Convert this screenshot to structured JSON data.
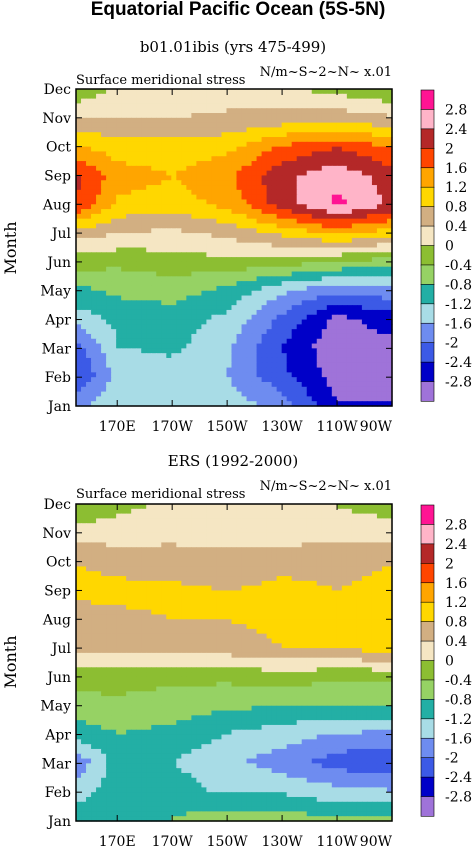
{
  "title": "Equatorial Pacific Ocean (5S-5N)",
  "chart_data": [
    {
      "type": "heatmap",
      "title": "b01.01ibis (yrs 475-499)",
      "subtitle_left": "Surface meridional stress",
      "subtitle_right": "N/m~S~2~N~ x.01",
      "xlabel": "",
      "ylabel": "Month",
      "x_ticks": [
        "170E",
        "170W",
        "150W",
        "130W",
        "110W",
        "90W"
      ],
      "x_tick_values": [
        170,
        190,
        210,
        230,
        250,
        270
      ],
      "xlim": [
        155,
        270
      ],
      "y_ticks": [
        "Jan",
        "Feb",
        "Mar",
        "Apr",
        "May",
        "Jun",
        "Jul",
        "Aug",
        "Sep",
        "Oct",
        "Nov",
        "Dec"
      ],
      "x": [
        155,
        170,
        190,
        210,
        230,
        250,
        270
      ],
      "values": [
        [
          -1.8,
          -1.3,
          -1.3,
          -1.4,
          -1.8,
          -2.8,
          -2.8
        ],
        [
          -2.4,
          -1.5,
          -1.4,
          -1.6,
          -2.3,
          -3.0,
          -3.0
        ],
        [
          -2.2,
          -1.2,
          -1.1,
          -1.5,
          -2.4,
          -3.1,
          -2.9
        ],
        [
          -1.4,
          -1.1,
          -1.0,
          -1.3,
          -2.1,
          -2.9,
          -2.6
        ],
        [
          -0.9,
          -0.7,
          -0.6,
          -0.9,
          -1.5,
          -1.9,
          -1.7
        ],
        [
          -0.2,
          -0.3,
          -0.2,
          -0.1,
          -0.2,
          -0.4,
          -0.6
        ],
        [
          0.6,
          0.4,
          0.3,
          0.5,
          0.9,
          1.3,
          1.0
        ],
        [
          2.0,
          1.1,
          1.0,
          1.3,
          2.2,
          2.9,
          2.3
        ],
        [
          2.1,
          1.4,
          1.2,
          1.5,
          2.3,
          2.7,
          2.2
        ],
        [
          1.3,
          1.0,
          1.0,
          1.1,
          1.7,
          2.0,
          1.6
        ],
        [
          0.5,
          0.4,
          0.4,
          0.5,
          0.6,
          0.7,
          0.5
        ],
        [
          -0.3,
          0.1,
          0.2,
          0.2,
          0.1,
          -0.1,
          -0.3
        ]
      ],
      "levels": [
        -2.8,
        -2.4,
        -2.0,
        -1.6,
        -1.2,
        -0.8,
        -0.4,
        0,
        0.4,
        0.8,
        1.2,
        1.6,
        2.0,
        2.4,
        2.8
      ]
    },
    {
      "type": "heatmap",
      "title": "ERS (1992-2000)",
      "subtitle_left": "Surface meridional stress",
      "subtitle_right": "N/m~S~2~N~ x.01",
      "xlabel": "",
      "ylabel": "Month",
      "x_ticks": [
        "170E",
        "170W",
        "150W",
        "130W",
        "110W",
        "90W"
      ],
      "x_tick_values": [
        170,
        190,
        210,
        230,
        250,
        270
      ],
      "xlim": [
        155,
        270
      ],
      "y_ticks": [
        "Jan",
        "Feb",
        "Mar",
        "Apr",
        "May",
        "Jun",
        "Jul",
        "Aug",
        "Sep",
        "Oct",
        "Nov",
        "Dec"
      ],
      "x": [
        155,
        170,
        190,
        210,
        230,
        250,
        270
      ],
      "values": [
        [
          -0.9,
          -0.9,
          -0.8,
          -0.6,
          -0.6,
          -0.8,
          -0.7
        ],
        [
          -1.5,
          -0.9,
          -1.0,
          -1.3,
          -1.3,
          -1.5,
          -1.6
        ],
        [
          -1.9,
          -1.0,
          -1.2,
          -1.5,
          -1.8,
          -2.2,
          -2.3
        ],
        [
          -1.0,
          -0.8,
          -0.9,
          -1.2,
          -1.4,
          -1.6,
          -1.7
        ],
        [
          -0.6,
          -0.5,
          -0.6,
          -0.7,
          -0.8,
          -0.8,
          -0.7
        ],
        [
          -0.2,
          -0.2,
          -0.3,
          -0.3,
          -0.2,
          -0.3,
          -0.3
        ],
        [
          0.5,
          0.5,
          0.5,
          0.6,
          0.8,
          0.8,
          1.0
        ],
        [
          0.6,
          0.7,
          0.8,
          0.8,
          0.9,
          1.0,
          1.0
        ],
        [
          0.9,
          0.9,
          0.9,
          0.8,
          0.9,
          0.8,
          0.9
        ],
        [
          0.8,
          0.7,
          0.6,
          0.6,
          0.7,
          0.7,
          0.8
        ],
        [
          0.3,
          0.2,
          0.3,
          0.2,
          0.2,
          0.3,
          0.3
        ],
        [
          -0.4,
          -0.1,
          0.1,
          0.1,
          0.0,
          0.0,
          -0.2
        ]
      ],
      "levels": [
        -2.8,
        -2.4,
        -2.0,
        -1.6,
        -1.2,
        -0.8,
        -0.4,
        0,
        0.4,
        0.8,
        1.2,
        1.6,
        2.0,
        2.4,
        2.8
      ]
    }
  ],
  "colorbar": {
    "labels": [
      "2.8",
      "2.4",
      "2",
      "1.6",
      "1.2",
      "0.8",
      "0.4",
      "0",
      "-0.4",
      "-0.8",
      "-1.2",
      "-1.6",
      "-2",
      "-2.4",
      "-2.8"
    ],
    "colors": [
      "#9f73d9",
      "#0000c8",
      "#3c5ae6",
      "#6e8cf0",
      "#a8dce6",
      "#23afa5",
      "#96d264",
      "#8cbe32",
      "#f5e6c3",
      "#d2af82",
      "#ffd700",
      "#ffa500",
      "#ff4500",
      "#b42828",
      "#ffb4c8",
      "#ff1493"
    ]
  }
}
